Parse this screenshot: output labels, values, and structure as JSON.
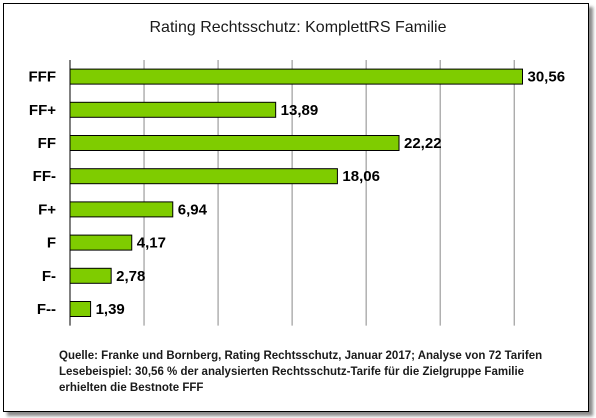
{
  "chart_data": {
    "type": "bar",
    "orientation": "horizontal",
    "title": "Rating Rechtsschutz: KomplettRS Familie",
    "xlabel": "",
    "ylabel": "",
    "categories": [
      "FFF",
      "FF+",
      "FF",
      "FF-",
      "F+",
      "F",
      "F-",
      "F--"
    ],
    "values": [
      30.56,
      13.89,
      22.22,
      18.06,
      6.94,
      4.17,
      2.78,
      1.39
    ],
    "value_labels": [
      "30,56",
      "13,89",
      "22,22",
      "18,06",
      "6,94",
      "4,17",
      "2,78",
      "1,39"
    ],
    "xlim": [
      0,
      35
    ],
    "grid": true,
    "bar_color": "#7fcc00",
    "bar_outline": "#000000"
  },
  "notes": {
    "line1": "Quelle: Franke und Bornberg, Rating Rechtsschutz, Januar 2017; Analyse von 72 Tarifen",
    "line2": "Lesebeispiel: 30,56 % der analysierten Rechtsschutz-Tarife für die Zielgruppe Familie",
    "line3": "erhielten die Bestnote FFF"
  }
}
